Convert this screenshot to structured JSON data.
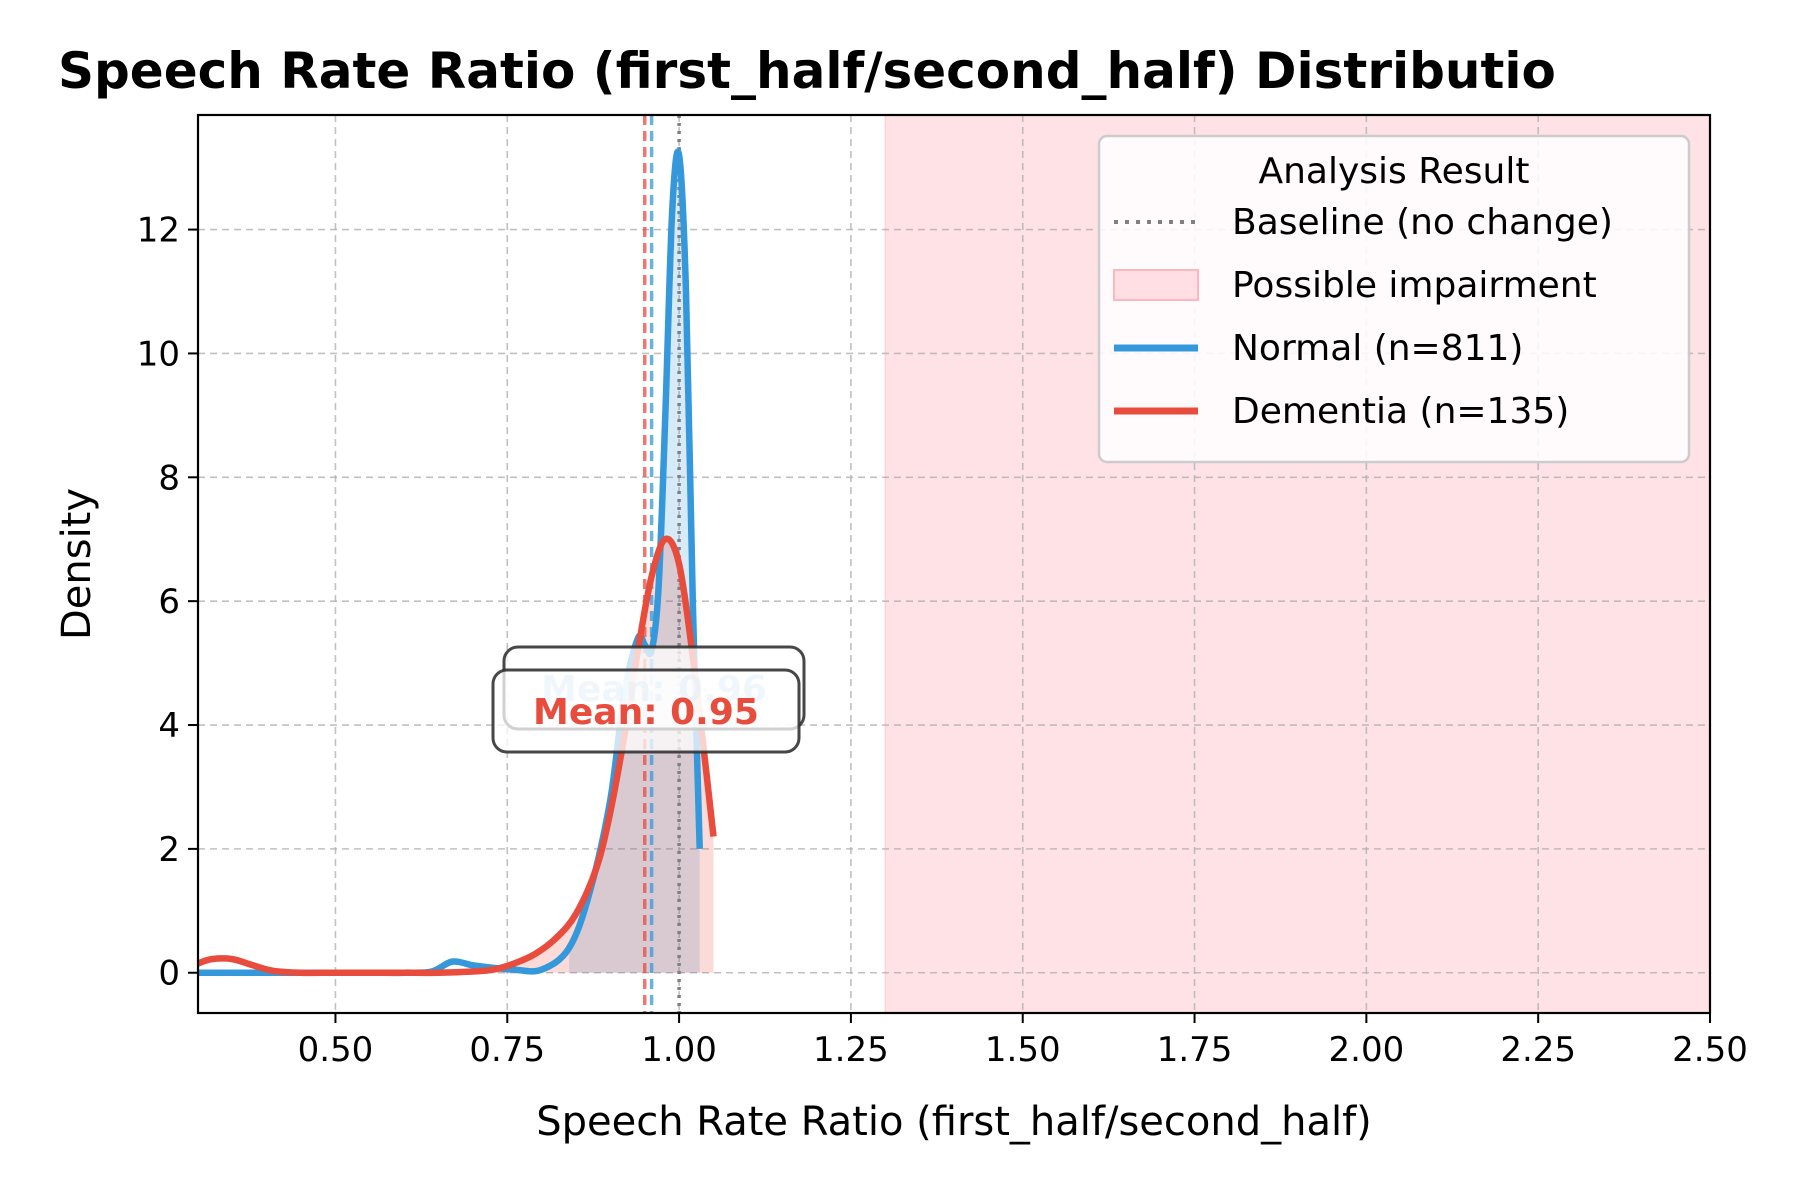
{
  "chart_data": {
    "type": "line",
    "title": "Speech Rate Ratio (first_half/second_half) Distributio",
    "xlabel": "Speech Rate Ratio (first_half/second_half)",
    "ylabel": "Density",
    "xlim": [
      0.3,
      2.5
    ],
    "ylim": [
      -0.65,
      13.85
    ],
    "xticks": [
      0.5,
      0.75,
      1.0,
      1.25,
      1.5,
      1.75,
      2.0,
      2.25,
      2.5
    ],
    "xtick_labels": [
      "0.50",
      "0.75",
      "1.00",
      "1.25",
      "1.50",
      "1.75",
      "2.00",
      "2.25",
      "2.50"
    ],
    "yticks": [
      0,
      2,
      4,
      6,
      8,
      10,
      12
    ],
    "ytick_labels": [
      "0",
      "2",
      "4",
      "6",
      "8",
      "10",
      "12"
    ],
    "grid": true,
    "legend_title": "Analysis Result",
    "legend_position": "top-right",
    "baseline": {
      "label": "Baseline (no change)",
      "x": 1.0,
      "color": "#808080"
    },
    "impairment_region": {
      "label": "Possible impairment",
      "x_start": 1.3,
      "x_end": 2.5,
      "color": "#ffb6c1"
    },
    "series": [
      {
        "name": "Normal (n=811)",
        "color": "#3498db",
        "mean": 0.96,
        "mean_label": "Mean: 0.96",
        "x": [
          0.3,
          0.35,
          0.4,
          0.45,
          0.5,
          0.55,
          0.6,
          0.64,
          0.67,
          0.7,
          0.73,
          0.76,
          0.8,
          0.84,
          0.87,
          0.9,
          0.92,
          0.94,
          0.95,
          0.96,
          0.97,
          0.98,
          0.99,
          1.0,
          1.01,
          1.02,
          1.03
        ],
        "y": [
          0.0,
          0.0,
          0.0,
          0.0,
          0.0,
          0.0,
          0.0,
          0.02,
          0.18,
          0.12,
          0.08,
          0.05,
          0.05,
          0.4,
          1.3,
          2.8,
          4.5,
          5.4,
          5.3,
          5.2,
          6.2,
          9.0,
          12.3,
          13.2,
          11.0,
          6.0,
          2.0
        ]
      },
      {
        "name": "Dementia (n=135)",
        "color": "#e74c3c",
        "mean": 0.95,
        "mean_label": "Mean: 0.95",
        "x": [
          0.3,
          0.32,
          0.35,
          0.38,
          0.41,
          0.45,
          0.5,
          0.55,
          0.6,
          0.65,
          0.7,
          0.73,
          0.76,
          0.79,
          0.82,
          0.85,
          0.88,
          0.9,
          0.92,
          0.94,
          0.96,
          0.98,
          1.0,
          1.02,
          1.04,
          1.05
        ],
        "y": [
          0.15,
          0.22,
          0.22,
          0.12,
          0.03,
          0.0,
          0.0,
          0.0,
          0.0,
          0.0,
          0.02,
          0.05,
          0.15,
          0.3,
          0.55,
          0.95,
          1.7,
          2.6,
          3.8,
          5.2,
          6.4,
          7.0,
          6.6,
          5.1,
          3.2,
          2.2
        ]
      }
    ]
  }
}
